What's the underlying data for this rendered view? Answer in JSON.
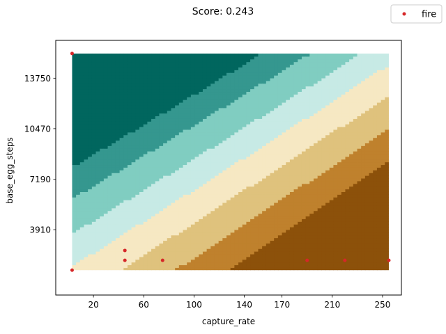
{
  "chart_data": {
    "type": "scatter",
    "title": "Score: 0.243",
    "xlabel": "capture_rate",
    "ylabel": "base_egg_steps",
    "xlim": [
      -10,
      265
    ],
    "ylim": [
      -335,
      16205
    ],
    "x_ticks": [
      20,
      60,
      100,
      140,
      170,
      210,
      250
    ],
    "y_ticks": [
      3910,
      7190,
      10470,
      13750
    ],
    "legend_position": "top-right",
    "grid": false,
    "background": "decision-surface contour bands (teal at high base_egg_steps / low capture_rate, brown at high capture_rate / low base_egg_steps)",
    "band_colors": [
      "#01665e",
      "#35978f",
      "#80cdc1",
      "#c7eae5",
      "#f6e8c3",
      "#dfc27d",
      "#bf812d",
      "#8c510a"
    ],
    "series": [
      {
        "name": "fire",
        "color": "#d62728",
        "points": [
          {
            "x": 3,
            "y": 15350
          },
          {
            "x": 3,
            "y": 1280
          },
          {
            "x": 45,
            "y": 1920
          },
          {
            "x": 45,
            "y": 2560
          },
          {
            "x": 75,
            "y": 1920
          },
          {
            "x": 190,
            "y": 1920
          },
          {
            "x": 220,
            "y": 1920
          },
          {
            "x": 255,
            "y": 1920
          }
        ]
      }
    ]
  }
}
